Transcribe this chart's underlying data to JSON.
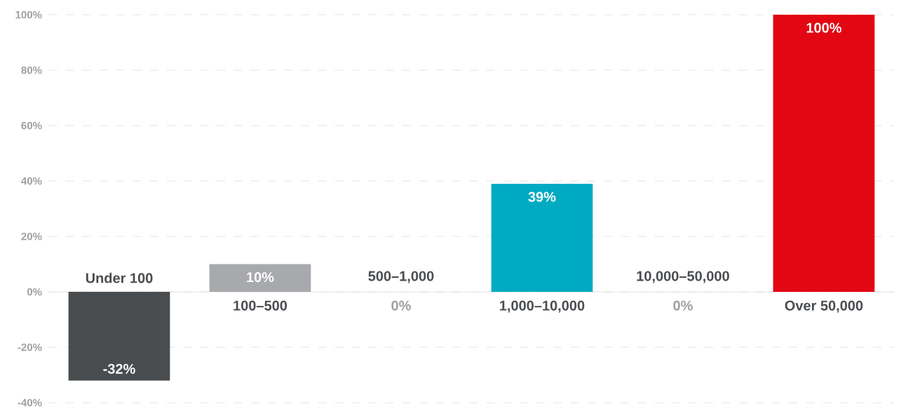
{
  "chart_data": {
    "type": "bar",
    "categories": [
      "Under 100",
      "100–500",
      "500–1,000",
      "1,000–10,000",
      "10,000–50,000",
      "Over 50,000"
    ],
    "values": [
      -32,
      10,
      0,
      39,
      0,
      100
    ],
    "value_labels": [
      "-32%",
      "10%",
      "0%",
      "39%",
      "0%",
      "100%"
    ],
    "colors": [
      "#4a4d50",
      "#a7a9ac",
      null,
      "#00abc2",
      null,
      "#e30613"
    ],
    "ylim": [
      -40,
      100
    ],
    "yticks": [
      {
        "value": -40,
        "label": "-40%"
      },
      {
        "value": -20,
        "label": "-20%"
      },
      {
        "value": 0,
        "label": "0%"
      },
      {
        "value": 20,
        "label": "20%"
      },
      {
        "value": 40,
        "label": "40%"
      },
      {
        "value": 60,
        "label": "60%"
      },
      {
        "value": 80,
        "label": "80%"
      },
      {
        "value": 100,
        "label": "100%"
      }
    ],
    "grid": "y"
  }
}
